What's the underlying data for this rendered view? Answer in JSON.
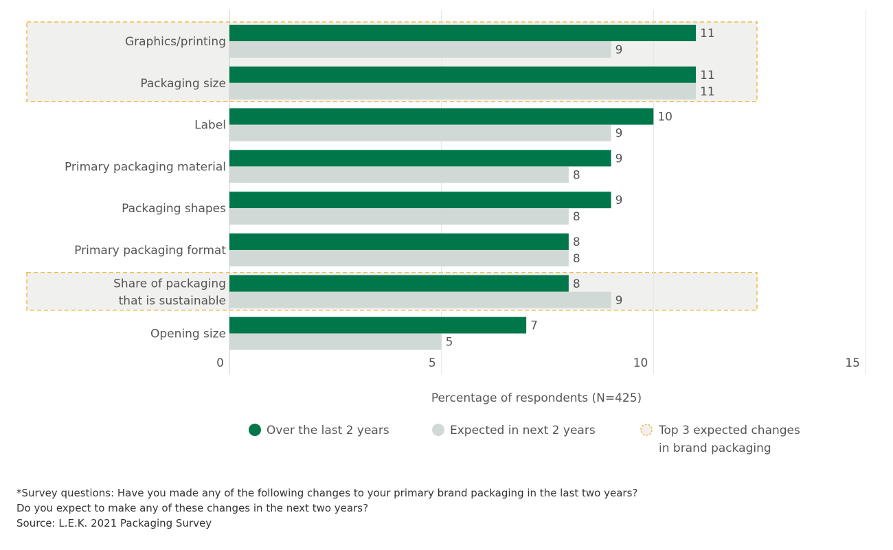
{
  "chart_data": {
    "type": "bar",
    "orientation": "horizontal",
    "categories": [
      "Graphics/printing",
      "Packaging size",
      "Label",
      "Primary packaging material",
      "Packaging shapes",
      "Primary packaging format",
      "Share of packaging that is sustainable",
      "Opening size"
    ],
    "category_lines": [
      [
        "Graphics/printing"
      ],
      [
        "Packaging size"
      ],
      [
        "Label"
      ],
      [
        "Primary packaging material"
      ],
      [
        "Packaging shapes"
      ],
      [
        "Primary packaging format"
      ],
      [
        "Share of packaging",
        "that is sustainable"
      ],
      [
        "Opening size"
      ]
    ],
    "series": [
      {
        "name": "Over the last 2 years",
        "color": "#00774a",
        "values": [
          11,
          11,
          10,
          9,
          9,
          8,
          8,
          7
        ]
      },
      {
        "name": "Expected in next 2 years",
        "color": "#d1d9d6",
        "values": [
          9,
          11,
          9,
          8,
          8,
          8,
          9,
          5
        ]
      }
    ],
    "highlight": {
      "name": "Top 3 expected changes in brand packaging",
      "legend_lines": [
        "Top 3 expected changes",
        "in brand packaging"
      ],
      "categories": [
        "Graphics/printing",
        "Packaging size",
        "Share of packaging that is sustainable"
      ],
      "color": "#f2b84b",
      "fill": "#f0f1ef"
    },
    "xlabel": "Percentage of respondents (N=425)",
    "xlim": [
      0,
      15
    ],
    "xticks": [
      "0",
      "5",
      "10",
      "15"
    ],
    "grid": true,
    "legend_position": "bottom"
  },
  "footnote": {
    "line1": "*Survey questions: Have you made any of the following changes to your primary brand packaging in the last two years?",
    "line2": "Do you expect to make any of these changes in the next two years?",
    "source": "Source: L.E.K. 2021 Packaging Survey"
  }
}
